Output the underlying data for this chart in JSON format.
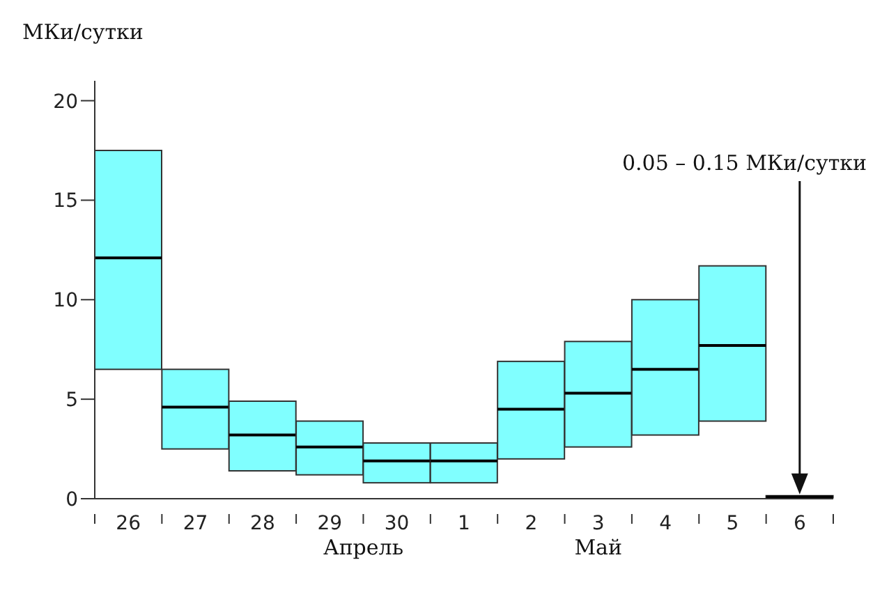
{
  "chart_data": {
    "type": "box",
    "ylabel": "МКи/сутки",
    "categories": [
      "26",
      "27",
      "28",
      "29",
      "30",
      "1",
      "2",
      "3",
      "4",
      "5",
      "6"
    ],
    "boxes": [
      {
        "low": 6.5,
        "q1": 6.5,
        "median": 12.1,
        "q3": 17.5,
        "high": 17.5
      },
      {
        "low": 2.5,
        "q1": 2.5,
        "median": 4.6,
        "q3": 6.5,
        "high": 6.5
      },
      {
        "low": 1.4,
        "q1": 1.4,
        "median": 3.2,
        "q3": 4.9,
        "high": 4.9
      },
      {
        "low": 1.2,
        "q1": 1.2,
        "median": 2.6,
        "q3": 3.9,
        "high": 3.9
      },
      {
        "low": 0.8,
        "q1": 0.8,
        "median": 1.9,
        "q3": 2.8,
        "high": 2.8
      },
      {
        "low": 0.8,
        "q1": 0.8,
        "median": 1.9,
        "q3": 2.8,
        "high": 2.8
      },
      {
        "low": 2.0,
        "q1": 2.0,
        "median": 4.5,
        "q3": 6.9,
        "high": 6.9
      },
      {
        "low": 2.6,
        "q1": 2.6,
        "median": 5.3,
        "q3": 7.9,
        "high": 7.9
      },
      {
        "low": 3.2,
        "q1": 3.2,
        "median": 6.5,
        "q3": 10.0,
        "high": 10.0
      },
      {
        "low": 3.9,
        "q1": 3.9,
        "median": 7.7,
        "q3": 11.7,
        "high": 11.7
      },
      {
        "low": 0.05,
        "q1": 0.05,
        "median": 0.1,
        "q3": 0.15,
        "high": 0.15
      }
    ],
    "colors": [
      "#80ffff",
      "#80ffff",
      "#80ffff",
      "#80ffff",
      "#80ffff",
      "#80ffff",
      "#80ffff",
      "#80ffff",
      "#80ffff",
      "#80ffff",
      "#000080"
    ],
    "ylim": [
      0,
      21
    ],
    "yticks": [
      0,
      5,
      10,
      15,
      20
    ],
    "legend": false,
    "annotations": [
      "Апрель",
      "Май",
      "0.05 – 0.15 МКи/сутки"
    ]
  }
}
